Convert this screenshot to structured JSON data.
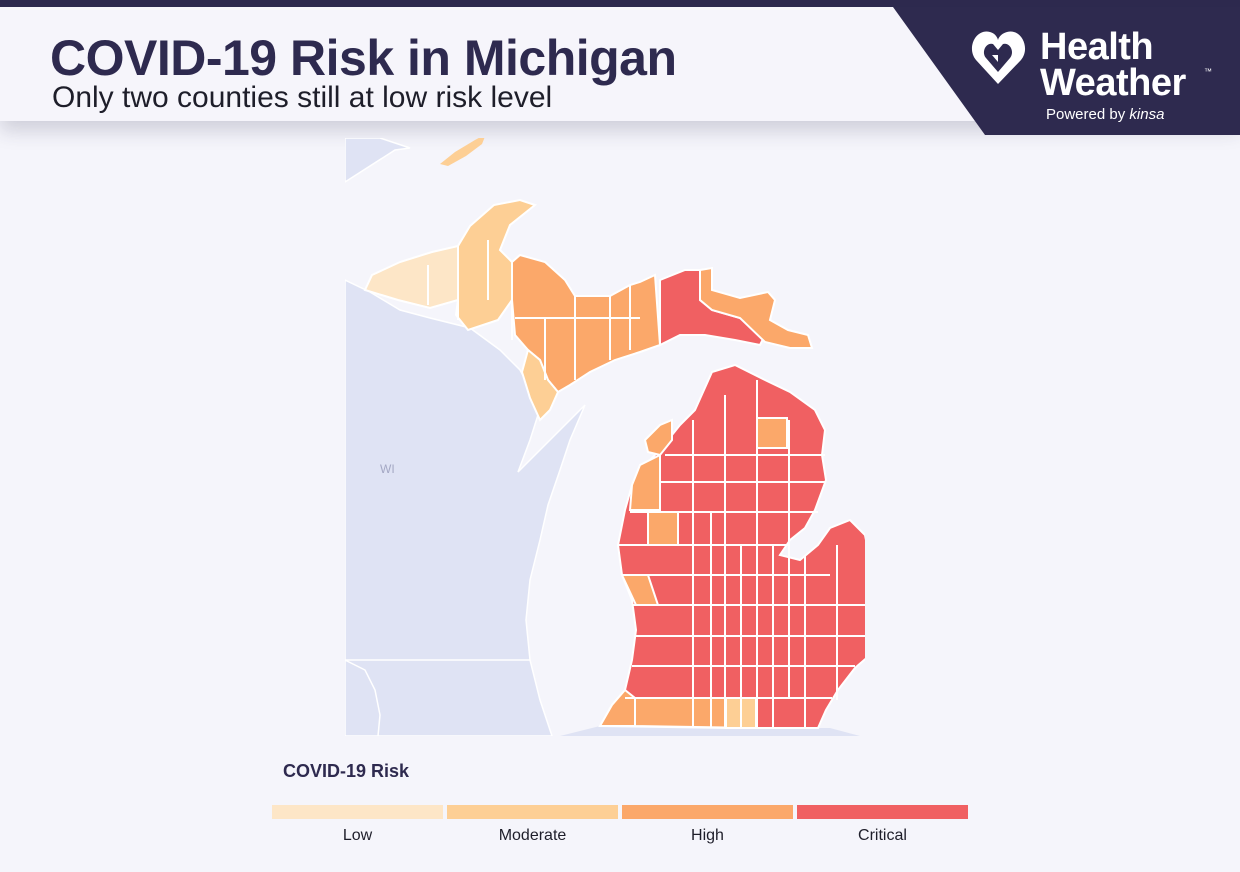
{
  "header": {
    "title": "COVID-19 Risk in Michigan",
    "subtitle": "Only two counties still at low risk level"
  },
  "brand": {
    "line1": "Health",
    "line2": "Weather",
    "trademark": "™",
    "powered_by": "Powered by",
    "partner": "kinsa",
    "logo_icon": "heart-shield-icon",
    "panel_color": "#2e2a4f"
  },
  "map": {
    "neighbor_label": "WI",
    "land_color": "#dfe3f4",
    "water_color": "#f5f5fb",
    "regions_by_risk": {
      "low": [
        "upper-peninsula-west"
      ],
      "moderate": [
        "upper-peninsula-keweenaw-houghton",
        "upper-peninsula-menominee-delta"
      ],
      "high": [
        "upper-peninsula-central",
        "upper-peninsula-east",
        "west-shore-counties",
        "southwest-border-counties",
        "northeast-interior-county"
      ],
      "critical": [
        "eastern-upper-peninsula",
        "northern-lower-peninsula",
        "central-lower-peninsula",
        "thumb",
        "southeast-michigan",
        "south-central-michigan"
      ]
    }
  },
  "legend": {
    "title": "COVID-19 Risk",
    "items": [
      {
        "label": "Low",
        "color": "#fde6c7"
      },
      {
        "label": "Moderate",
        "color": "#fdcf95"
      },
      {
        "label": "High",
        "color": "#fba86a"
      },
      {
        "label": "Critical",
        "color": "#f06062"
      }
    ]
  }
}
